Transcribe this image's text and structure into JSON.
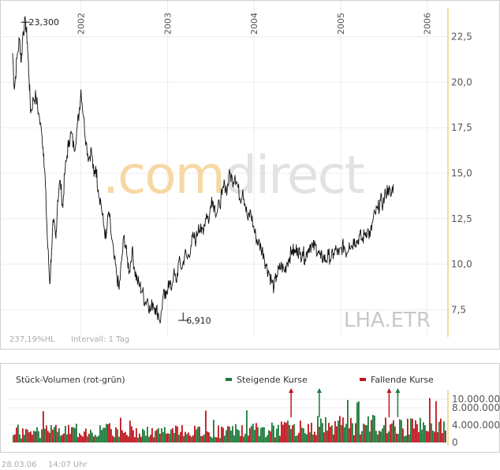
{
  "chart_data": [
    {
      "type": "line",
      "symbol": "LHA.ETR",
      "watermark": {
        "part1": ".com",
        "part2": "direct"
      },
      "info_left": "237,19%HL",
      "info_interval": "Intervall: 1 Tag",
      "y_ticks": [
        "22,5",
        "20,0",
        "17,5",
        "15,0",
        "12,5",
        "10,0",
        "7,5"
      ],
      "y_tick_values": [
        22.5,
        20.0,
        17.5,
        15.0,
        12.5,
        10.0,
        7.5
      ],
      "ylim": [
        6.0,
        24.0
      ],
      "x_ticks": [
        "2002",
        "2003",
        "2004",
        "2005",
        "2006"
      ],
      "x_tick_values": [
        2002.0,
        2003.0,
        2004.0,
        2005.0,
        2006.0
      ],
      "xlim": [
        2001.21,
        2006.24
      ],
      "annotations": [
        {
          "text": "23,300",
          "x": 2001.36,
          "y": 23.3
        },
        {
          "text": "6,910",
          "x": 2003.18,
          "y": 6.91
        }
      ],
      "series": [
        {
          "values": [
            [
              2001.21,
              21.6
            ],
            [
              2001.23,
              19.6
            ],
            [
              2001.26,
              21.3
            ],
            [
              2001.29,
              22.4
            ],
            [
              2001.31,
              21.1
            ],
            [
              2001.33,
              22.8
            ],
            [
              2001.36,
              23.3
            ],
            [
              2001.38,
              22.2
            ],
            [
              2001.4,
              20.2
            ],
            [
              2001.42,
              18.3
            ],
            [
              2001.45,
              19.1
            ],
            [
              2001.48,
              19.2
            ],
            [
              2001.51,
              18.3
            ],
            [
              2001.55,
              17.0
            ],
            [
              2001.57,
              16.1
            ],
            [
              2001.59,
              14.2
            ],
            [
              2001.61,
              11.5
            ],
            [
              2001.64,
              8.9
            ],
            [
              2001.66,
              10.8
            ],
            [
              2001.68,
              12.3
            ],
            [
              2001.71,
              11.4
            ],
            [
              2001.73,
              13.5
            ],
            [
              2001.76,
              14.6
            ],
            [
              2001.79,
              13.1
            ],
            [
              2001.81,
              14.9
            ],
            [
              2001.84,
              16.0
            ],
            [
              2001.86,
              16.8
            ],
            [
              2001.89,
              17.2
            ],
            [
              2001.92,
              16.3
            ],
            [
              2001.95,
              17.3
            ],
            [
              2001.98,
              18.4
            ],
            [
              2002.0,
              19.6
            ],
            [
              2002.03,
              18.1
            ],
            [
              2002.06,
              16.7
            ],
            [
              2002.09,
              15.8
            ],
            [
              2002.12,
              16.3
            ],
            [
              2002.15,
              14.8
            ],
            [
              2002.17,
              15.4
            ],
            [
              2002.2,
              14.1
            ],
            [
              2002.23,
              13.4
            ],
            [
              2002.26,
              12.2
            ],
            [
              2002.29,
              11.4
            ],
            [
              2002.32,
              12.9
            ],
            [
              2002.35,
              11.6
            ],
            [
              2002.38,
              10.4
            ],
            [
              2002.41,
              9.5
            ],
            [
              2002.44,
              8.6
            ],
            [
              2002.47,
              10.2
            ],
            [
              2002.5,
              11.6
            ],
            [
              2002.53,
              10.4
            ],
            [
              2002.56,
              9.6
            ],
            [
              2002.59,
              10.8
            ],
            [
              2002.62,
              9.7
            ],
            [
              2002.65,
              9.1
            ],
            [
              2002.68,
              8.8
            ],
            [
              2002.71,
              8.5
            ],
            [
              2002.74,
              7.9
            ],
            [
              2002.77,
              8.1
            ],
            [
              2002.8,
              7.4
            ],
            [
              2002.83,
              7.9
            ],
            [
              2002.86,
              7.6
            ],
            [
              2002.89,
              7.3
            ],
            [
              2002.92,
              6.91
            ],
            [
              2002.95,
              8.3
            ],
            [
              2002.98,
              8.1
            ],
            [
              2003.01,
              9.1
            ],
            [
              2003.04,
              8.6
            ],
            [
              2003.07,
              9.5
            ],
            [
              2003.1,
              9.0
            ],
            [
              2003.13,
              10.1
            ],
            [
              2003.17,
              9.8
            ],
            [
              2003.2,
              10.6
            ],
            [
              2003.23,
              10.3
            ],
            [
              2003.27,
              11.0
            ],
            [
              2003.3,
              11.5
            ],
            [
              2003.33,
              11.3
            ],
            [
              2003.36,
              12.2
            ],
            [
              2003.39,
              11.7
            ],
            [
              2003.42,
              12.1
            ],
            [
              2003.45,
              12.8
            ],
            [
              2003.48,
              12.4
            ],
            [
              2003.51,
              13.7
            ],
            [
              2003.54,
              13.2
            ],
            [
              2003.57,
              12.8
            ],
            [
              2003.6,
              13.3
            ],
            [
              2003.63,
              13.8
            ],
            [
              2003.66,
              14.4
            ],
            [
              2003.69,
              14.1
            ],
            [
              2003.72,
              15.0
            ],
            [
              2003.75,
              14.6
            ],
            [
              2003.78,
              14.9
            ],
            [
              2003.81,
              14.3
            ],
            [
              2003.84,
              13.6
            ],
            [
              2003.87,
              14.1
            ],
            [
              2003.9,
              13.2
            ],
            [
              2003.93,
              12.4
            ],
            [
              2003.96,
              12.9
            ],
            [
              2003.99,
              12.1
            ],
            [
              2004.02,
              11.5
            ],
            [
              2004.05,
              11.2
            ],
            [
              2004.08,
              10.9
            ],
            [
              2004.11,
              10.6
            ],
            [
              2004.14,
              9.9
            ],
            [
              2004.17,
              9.6
            ],
            [
              2004.2,
              9.1
            ],
            [
              2004.23,
              8.7
            ],
            [
              2004.26,
              9.4
            ],
            [
              2004.29,
              9.7
            ],
            [
              2004.32,
              9.9
            ],
            [
              2004.35,
              9.6
            ],
            [
              2004.38,
              10.1
            ],
            [
              2004.41,
              10.4
            ],
            [
              2004.44,
              10.8
            ],
            [
              2004.47,
              10.6
            ],
            [
              2004.5,
              10.9
            ],
            [
              2004.53,
              10.5
            ],
            [
              2004.56,
              10.7
            ],
            [
              2004.59,
              10.3
            ],
            [
              2004.62,
              10.8
            ],
            [
              2004.65,
              11.1
            ],
            [
              2004.68,
              10.9
            ],
            [
              2004.71,
              11.0
            ],
            [
              2004.74,
              10.7
            ],
            [
              2004.77,
              10.3
            ],
            [
              2004.8,
              10.4
            ],
            [
              2004.83,
              10.2
            ],
            [
              2004.86,
              10.5
            ],
            [
              2004.89,
              10.3
            ],
            [
              2004.92,
              10.6
            ],
            [
              2004.95,
              10.8
            ],
            [
              2004.98,
              10.5
            ],
            [
              2005.01,
              10.9
            ],
            [
              2005.04,
              11.0
            ],
            [
              2005.07,
              10.6
            ],
            [
              2005.1,
              11.2
            ],
            [
              2005.13,
              11.0
            ],
            [
              2005.16,
              11.4
            ],
            [
              2005.19,
              11.2
            ],
            [
              2005.22,
              11.6
            ],
            [
              2005.25,
              11.3
            ],
            [
              2005.28,
              11.7
            ],
            [
              2005.31,
              11.9
            ],
            [
              2005.34,
              11.5
            ],
            [
              2005.37,
              12.3
            ],
            [
              2005.4,
              12.8
            ],
            [
              2005.43,
              13.0
            ],
            [
              2005.46,
              13.5
            ],
            [
              2005.49,
              13.3
            ],
            [
              2005.52,
              13.9
            ],
            [
              2005.55,
              14.2
            ],
            [
              2005.58,
              13.7
            ],
            [
              2005.61,
              14.4
            ]
          ]
        }
      ]
    },
    {
      "type": "bar",
      "title": "Stück-Volumen (rot-grün)",
      "legend": [
        {
          "label": "Steigende Kurse",
          "color": "#1b7a3a"
        },
        {
          "label": "Fallende Kurse",
          "color": "#c0141c"
        }
      ],
      "y_ticks": [
        "10.000.000",
        "8.000.000",
        "4.000.000",
        "0"
      ],
      "y_tick_values": [
        10000000,
        8000000,
        4000000,
        0
      ],
      "ylim": [
        0,
        12000000
      ],
      "colors": {
        "up": "#1b7a3a",
        "down": "#c0141c"
      },
      "volume_profile": [
        [
          0.0,
          2400000
        ],
        [
          0.1,
          2900000
        ],
        [
          0.2,
          3200000
        ],
        [
          0.3,
          2700000
        ],
        [
          0.4,
          2800000
        ],
        [
          0.5,
          3000000
        ],
        [
          0.6,
          3300000
        ],
        [
          0.7,
          4200000
        ],
        [
          0.8,
          4600000
        ],
        [
          0.9,
          4000000
        ],
        [
          1.0,
          3800000
        ]
      ],
      "overflow_markers": [
        {
          "x": 0.642,
          "color": "#c0141c"
        },
        {
          "x": 0.707,
          "color": "#1b7a3a"
        },
        {
          "x": 0.868,
          "color": "#c0141c"
        },
        {
          "x": 0.888,
          "color": "#1b7a3a"
        }
      ]
    }
  ],
  "footer": {
    "date": "28.03.06",
    "time": "14:07 Uhr"
  }
}
